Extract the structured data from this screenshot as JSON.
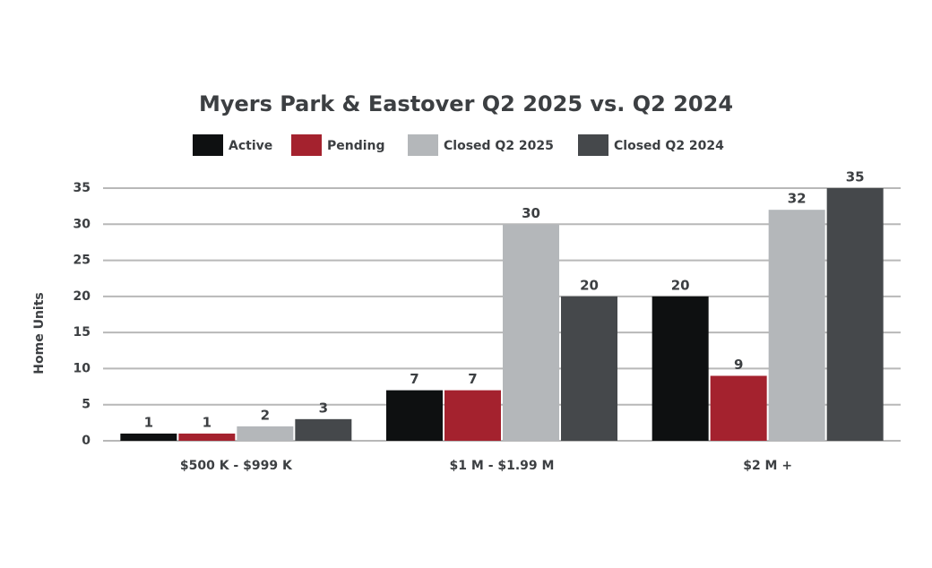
{
  "chart_data": {
    "type": "bar",
    "title": "Myers Park & Eastover Q2 2025 vs. Q2 2024",
    "y_label": "Home Units",
    "categories": [
      "$500 K - $999 K",
      "$1 M - $1.99 M",
      "$2 M +"
    ],
    "series": [
      {
        "name": "Active",
        "color": "#0e1011",
        "values": [
          1,
          7,
          20
        ]
      },
      {
        "name": "Pending",
        "color": "#a4222e",
        "values": [
          1,
          7,
          9
        ]
      },
      {
        "name": "Closed Q2 2025",
        "color": "#b4b7ba",
        "values": [
          2,
          30,
          32
        ]
      },
      {
        "name": "Closed Q2 2024",
        "color": "#45484b",
        "values": [
          3,
          20,
          35
        ]
      }
    ],
    "ylim": [
      0,
      35
    ],
    "yticks": [
      0,
      5,
      10,
      15,
      20,
      25,
      30,
      35
    ],
    "grid": true,
    "legend": "top"
  }
}
